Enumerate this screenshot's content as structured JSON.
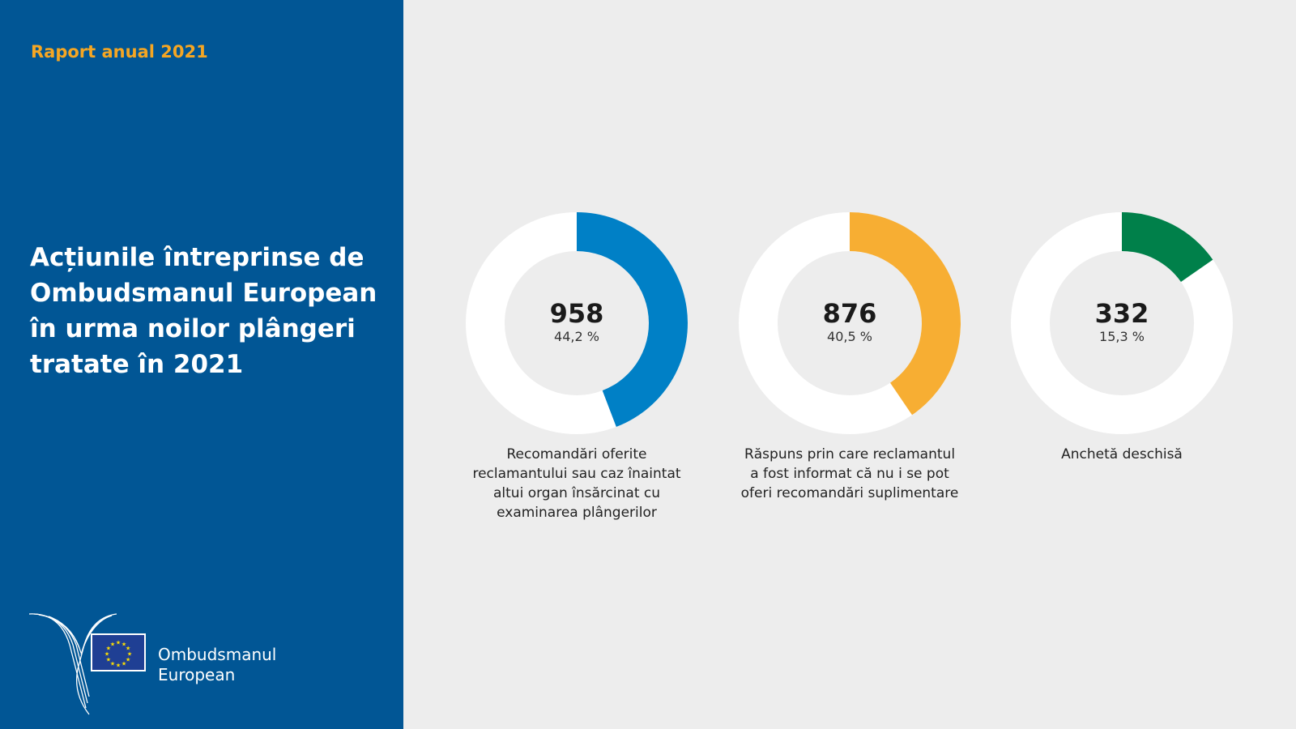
{
  "header": {
    "report": "Raport anual 2021",
    "title": "Acțiunile întreprinse de Ombudsmanul European în urma noilor plângeri tratate în 2021"
  },
  "logo": {
    "line1": "Ombudsmanul",
    "line2": "European"
  },
  "chart_data": {
    "type": "donut",
    "title": "Acțiunile întreprinse de Ombudsmanul European în urma noilor plângeri tratate în 2021",
    "series": [
      {
        "name": "Recomandări oferite reclamantului sau caz înaintat altui organ însărcinat cu examinarea plângerilor",
        "value": 958,
        "percent_label": "44,2 %",
        "percent": 44.2,
        "color": "#0080c6"
      },
      {
        "name": "Răspuns prin care reclamantul a fost informat că nu i se pot oferi recomandări suplimentare",
        "value": 876,
        "percent_label": "40,5 %",
        "percent": 40.5,
        "color": "#f7ae33"
      },
      {
        "name": "Anchetă deschisă",
        "value": 332,
        "percent_label": "15,3 %",
        "percent": 15.3,
        "color": "#00804a"
      }
    ]
  }
}
